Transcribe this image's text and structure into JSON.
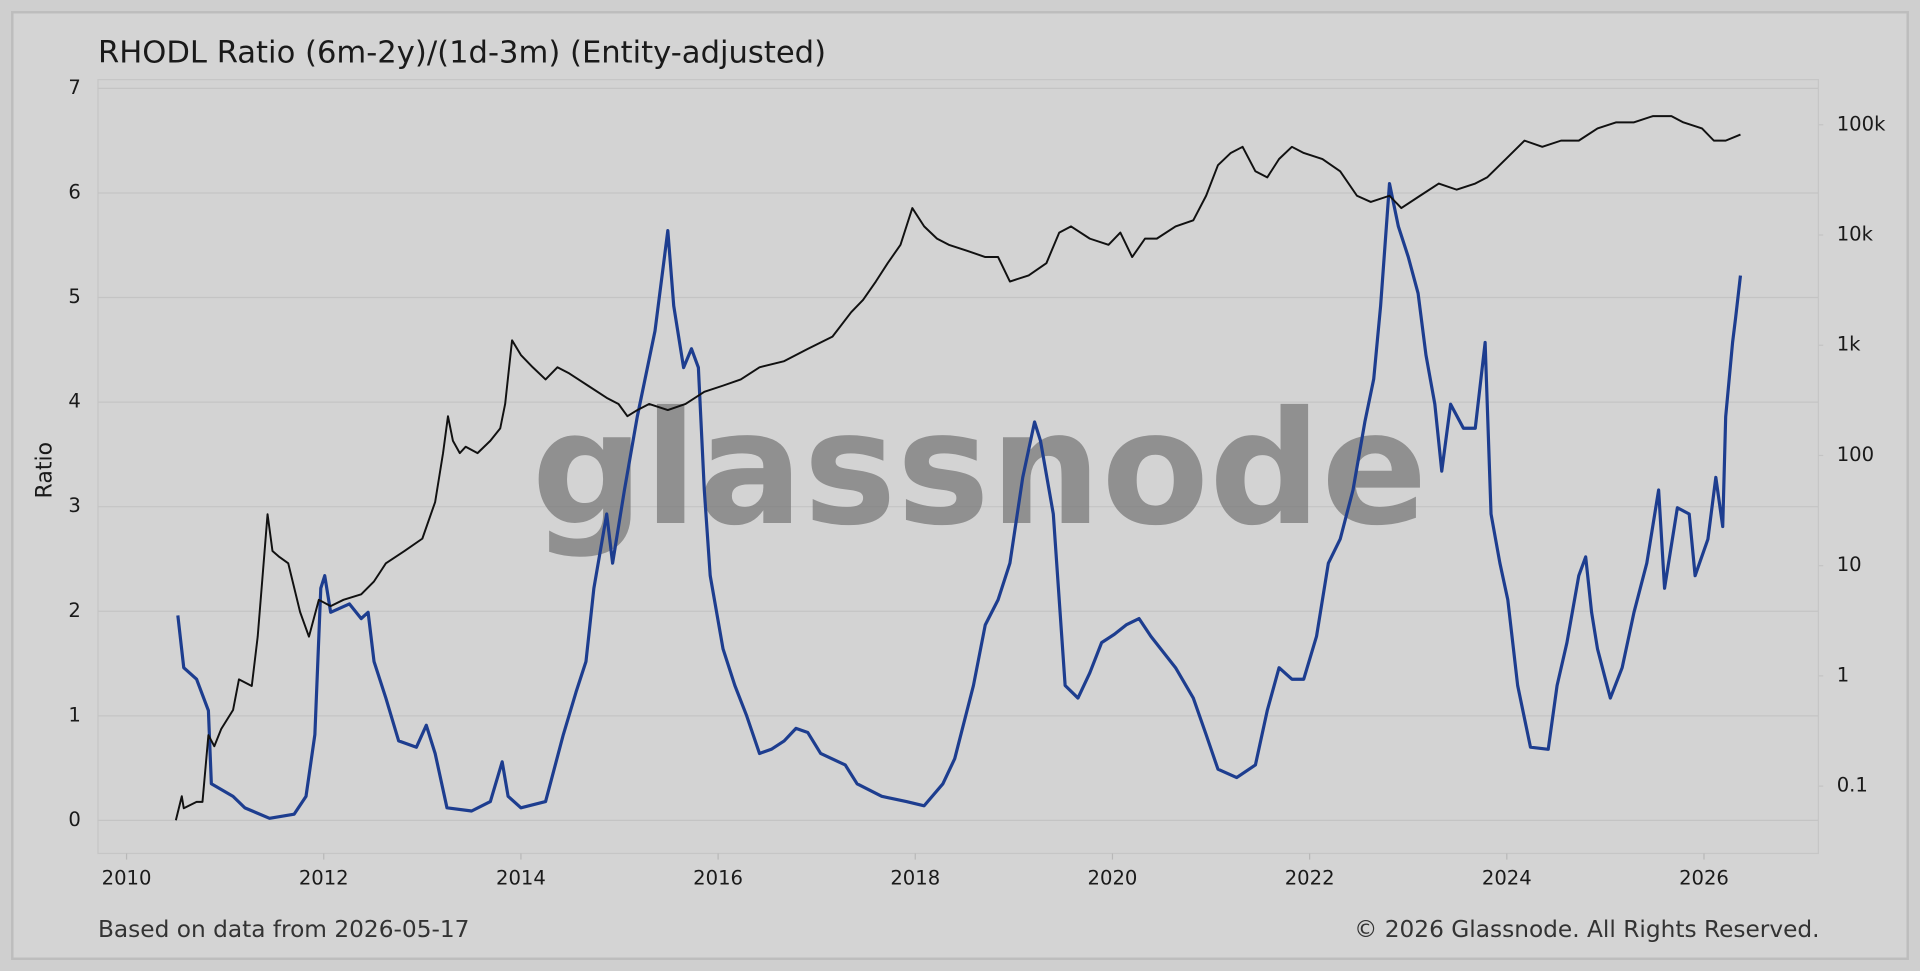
{
  "chart_data": {
    "type": "line",
    "title": "RHODL Ratio (6m-2y)/(1d-3m) (Entity-adjusted)",
    "ylabel": "Ratio",
    "watermark": "glassnode",
    "source_note": "Based on data from 2026-05-17",
    "copyright": "© 2026 Glassnode. All Rights Reserved.",
    "xlim": [
      2009.71,
      2027.16
    ],
    "xticks": [
      2010,
      2012,
      2014,
      2016,
      2018,
      2020,
      2022,
      2024,
      2026
    ],
    "ylim": [
      -0.316,
      7.084
    ],
    "yticks": [
      0,
      1,
      2,
      3,
      4,
      5,
      6,
      7
    ],
    "y2lim": [
      0.0245,
      257000
    ],
    "y2scale": "log",
    "y2ticks": [
      0.1,
      1,
      10,
      100,
      {
        "value": 1000,
        "label": "1k"
      },
      {
        "value": 10000,
        "label": "10k"
      },
      {
        "value": 100000,
        "label": "100k"
      }
    ],
    "grid": true,
    "series": [
      {
        "color": "#1d3d8f",
        "axis": "y",
        "x": [
          2010.52,
          2010.58,
          2010.71,
          2010.83,
          2010.86,
          2011.08,
          2011.2,
          2011.45,
          2011.7,
          2011.82,
          2011.91,
          2011.97,
          2012.01,
          2012.07,
          2012.26,
          2012.38,
          2012.45,
          2012.51,
          2012.63,
          2012.76,
          2012.94,
          2013.04,
          2013.13,
          2013.25,
          2013.5,
          2013.69,
          2013.81,
          2013.87,
          2014.0,
          2014.25,
          2014.43,
          2014.56,
          2014.66,
          2014.74,
          2014.87,
          2014.93,
          2015.05,
          2015.18,
          2015.36,
          2015.49,
          2015.55,
          2015.65,
          2015.73,
          2015.8,
          2015.86,
          2015.92,
          2016.05,
          2016.17,
          2016.29,
          2016.42,
          2016.54,
          2016.67,
          2016.79,
          2016.91,
          2017.04,
          2017.29,
          2017.41,
          2017.66,
          2017.91,
          2018.09,
          2018.28,
          2018.4,
          2018.59,
          2018.71,
          2018.84,
          2018.96,
          2019.09,
          2019.21,
          2019.27,
          2019.4,
          2019.52,
          2019.65,
          2019.77,
          2019.89,
          2020.02,
          2020.14,
          2020.27,
          2020.39,
          2020.64,
          2020.82,
          2020.95,
          2021.07,
          2021.26,
          2021.45,
          2021.57,
          2021.69,
          2021.82,
          2021.94,
          2022.07,
          2022.19,
          2022.31,
          2022.44,
          2022.56,
          2022.65,
          2022.72,
          2022.81,
          2022.9,
          2023.0,
          2023.1,
          2023.18,
          2023.27,
          2023.34,
          2023.43,
          2023.56,
          2023.68,
          2023.78,
          2023.84,
          2023.93,
          2024.01,
          2024.11,
          2024.24,
          2024.42,
          2024.51,
          2024.61,
          2024.73,
          2024.8,
          2024.86,
          2024.92,
          2025.05,
          2025.17,
          2025.29,
          2025.42,
          2025.54,
          2025.6,
          2025.73,
          2025.85,
          2025.91,
          2026.04,
          2026.12,
          2026.19,
          2026.22,
          2026.29,
          2026.32,
          2026.37
        ],
        "values": [
          1.96,
          1.46,
          1.35,
          1.05,
          0.35,
          0.23,
          0.12,
          0.02,
          0.06,
          0.23,
          0.82,
          2.22,
          2.34,
          1.99,
          2.07,
          1.93,
          1.99,
          1.52,
          1.17,
          0.76,
          0.7,
          0.91,
          0.64,
          0.12,
          0.09,
          0.18,
          0.56,
          0.23,
          0.12,
          0.18,
          0.82,
          1.23,
          1.52,
          2.22,
          2.93,
          2.46,
          3.16,
          3.86,
          4.68,
          5.64,
          4.92,
          4.33,
          4.51,
          4.33,
          3.16,
          2.34,
          1.64,
          1.29,
          1.0,
          0.64,
          0.68,
          0.76,
          0.88,
          0.84,
          0.64,
          0.53,
          0.35,
          0.23,
          0.18,
          0.14,
          0.35,
          0.59,
          1.29,
          1.87,
          2.11,
          2.46,
          3.28,
          3.81,
          3.63,
          2.93,
          1.29,
          1.17,
          1.41,
          1.7,
          1.78,
          1.87,
          1.93,
          1.76,
          1.46,
          1.17,
          0.82,
          0.49,
          0.41,
          0.53,
          1.05,
          1.46,
          1.35,
          1.35,
          1.76,
          2.46,
          2.69,
          3.16,
          3.81,
          4.22,
          4.92,
          6.09,
          5.68,
          5.39,
          5.04,
          4.45,
          3.98,
          3.34,
          3.98,
          3.75,
          3.75,
          4.57,
          2.93,
          2.46,
          2.11,
          1.29,
          0.7,
          0.68,
          1.29,
          1.7,
          2.34,
          2.52,
          1.99,
          1.64,
          1.17,
          1.46,
          1.99,
          2.46,
          3.16,
          2.22,
          2.99,
          2.93,
          2.34,
          2.69,
          3.28,
          2.81,
          3.86,
          4.57,
          4.8,
          5.21
        ]
      },
      {
        "color": "#111111",
        "axis": "y2",
        "x": [
          2010.5,
          2010.56,
          2010.58,
          2010.71,
          2010.77,
          2010.83,
          2010.89,
          2010.96,
          2011.08,
          2011.14,
          2011.27,
          2011.33,
          2011.37,
          2011.43,
          2011.48,
          2011.55,
          2011.64,
          2011.76,
          2011.85,
          2011.95,
          2012.07,
          2012.2,
          2012.38,
          2012.51,
          2012.63,
          2012.82,
          2013.0,
          2013.13,
          2013.21,
          2013.26,
          2013.31,
          2013.38,
          2013.44,
          2013.56,
          2013.69,
          2013.79,
          2013.84,
          2013.91,
          2014.0,
          2014.12,
          2014.25,
          2014.37,
          2014.49,
          2014.68,
          2014.87,
          2014.99,
          2015.08,
          2015.18,
          2015.3,
          2015.49,
          2015.67,
          2015.86,
          2016.05,
          2016.23,
          2016.42,
          2016.67,
          2016.91,
          2017.16,
          2017.35,
          2017.47,
          2017.6,
          2017.72,
          2017.85,
          2017.97,
          2018.09,
          2018.22,
          2018.34,
          2018.53,
          2018.71,
          2018.84,
          2018.96,
          2019.15,
          2019.33,
          2019.46,
          2019.58,
          2019.77,
          2019.96,
          2020.08,
          2020.2,
          2020.33,
          2020.45,
          2020.64,
          2020.82,
          2020.95,
          2021.07,
          2021.2,
          2021.32,
          2021.45,
          2021.57,
          2021.69,
          2021.82,
          2021.94,
          2022.13,
          2022.31,
          2022.48,
          2022.62,
          2022.81,
          2022.93,
          2023.12,
          2023.31,
          2023.49,
          2023.68,
          2023.8,
          2023.99,
          2024.18,
          2024.36,
          2024.55,
          2024.73,
          2024.92,
          2025.11,
          2025.29,
          2025.48,
          2025.67,
          2025.79,
          2025.98,
          2026.1,
          2026.22,
          2026.37
        ],
        "values": [
          0.049,
          0.081,
          0.063,
          0.072,
          0.072,
          0.29,
          0.23,
          0.33,
          0.49,
          0.93,
          0.81,
          2.27,
          6.3,
          29.3,
          13.6,
          12.0,
          10.5,
          3.8,
          2.27,
          4.9,
          4.3,
          4.9,
          5.5,
          7.2,
          10.5,
          13.6,
          17.6,
          37.8,
          105,
          227,
          136,
          105,
          120,
          105,
          136,
          176,
          293,
          1108,
          815,
          631,
          489,
          631,
          555,
          430,
          333,
          293,
          227,
          258,
          293,
          258,
          293,
          378,
          430,
          489,
          631,
          717,
          927,
          1197,
          1995,
          2578,
          3784,
          5550,
          8150,
          17550,
          11970,
          9270,
          8150,
          7170,
          6310,
          6310,
          3784,
          4300,
          5550,
          10520,
          11970,
          9270,
          8150,
          10520,
          6310,
          9270,
          9270,
          11970,
          13600,
          22700,
          42990,
          55500,
          63100,
          37840,
          33300,
          48900,
          63100,
          55500,
          48900,
          37840,
          22700,
          19950,
          22700,
          17550,
          22700,
          29300,
          25800,
          29300,
          33300,
          48900,
          71800,
          63100,
          71800,
          71800,
          92700,
          105200,
          105200,
          119700,
          119700,
          105200,
          92700,
          71800,
          71800,
          81500
        ]
      }
    ]
  }
}
